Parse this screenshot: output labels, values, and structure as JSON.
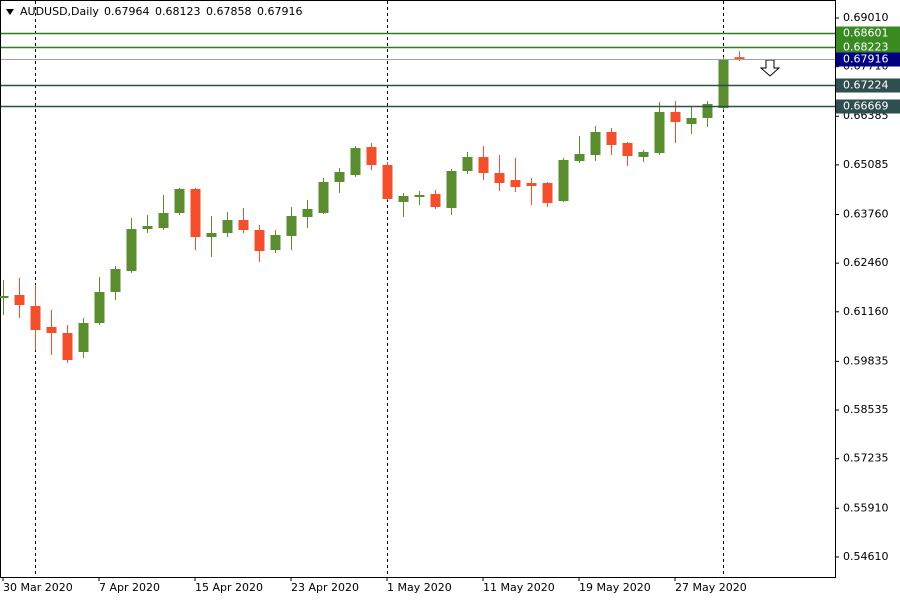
{
  "chart_data": {
    "type": "candlestick",
    "symbol": "AUDUSD,Daily",
    "up_color": "#5b8c30",
    "down_color": "#f2502c",
    "categories": [
      "30 Mar 2020",
      null,
      null,
      null,
      null,
      null,
      "7 Apr 2020",
      null,
      null,
      null,
      null,
      null,
      "15 Apr 2020",
      null,
      null,
      null,
      null,
      null,
      "23 Apr 2020",
      null,
      null,
      null,
      null,
      null,
      "1 May 2020",
      null,
      null,
      null,
      null,
      null,
      "11 May 2020",
      null,
      null,
      null,
      null,
      null,
      "19 May 2020",
      null,
      null,
      null,
      null,
      null,
      "27 May 2020",
      null,
      null,
      null,
      null
    ],
    "open": [
      0.61528,
      0.61609,
      0.61315,
      0.60754,
      0.60593,
      0.60086,
      0.6086,
      0.61689,
      0.6225,
      0.63372,
      0.63399,
      0.638,
      0.64441,
      0.63158,
      0.63265,
      0.63613,
      0.63345,
      0.62811,
      0.63185,
      0.63693,
      0.638,
      0.64628,
      0.64815,
      0.65563,
      0.65082,
      0.64094,
      0.64227,
      0.64307,
      0.63933,
      0.64922,
      0.65296,
      0.64868,
      0.64681,
      0.64601,
      0.64601,
      0.6412,
      0.65189,
      0.65349,
      0.65964,
      0.6567,
      0.65296,
      0.65403,
      0.66498,
      0.66178,
      0.66338,
      0.66605,
      0.67964
    ],
    "high": [
      0.62009,
      0.62063,
      0.61876,
      0.61208,
      0.60807,
      0.60994,
      0.6209,
      0.62383,
      0.63666,
      0.63746,
      0.64281,
      0.64468,
      0.64468,
      0.63719,
      0.63826,
      0.63933,
      0.63479,
      0.63345,
      0.6396,
      0.64147,
      0.64735,
      0.65002,
      0.6559,
      0.6567,
      0.65162,
      0.64334,
      0.64387,
      0.64414,
      0.64975,
      0.6543,
      0.6559,
      0.65349,
      0.65269,
      0.64735,
      0.64628,
      0.65269,
      0.65857,
      0.66124,
      0.66071,
      0.65697,
      0.65483,
      0.66766,
      0.66792,
      0.66632,
      0.66792,
      0.67968,
      0.68123
    ],
    "low": [
      0.61074,
      0.60994,
      0.60139,
      0.60005,
      0.59792,
      0.59925,
      0.60807,
      0.61475,
      0.62196,
      0.63265,
      0.63345,
      0.63746,
      0.62811,
      0.62624,
      0.63158,
      0.63265,
      0.6249,
      0.62731,
      0.62811,
      0.63399,
      0.63773,
      0.64334,
      0.64762,
      0.64949,
      0.64147,
      0.63693,
      0.64013,
      0.63907,
      0.63746,
      0.64842,
      0.64681,
      0.64387,
      0.64361,
      0.64013,
      0.6396,
      0.64094,
      0.65136,
      0.65189,
      0.65349,
      0.65055,
      0.65162,
      0.65349,
      0.6567,
      0.65911,
      0.66098,
      0.66552,
      0.67858
    ],
    "close": [
      0.61582,
      0.61341,
      0.60673,
      0.60593,
      0.59872,
      0.6086,
      0.61689,
      0.62303,
      0.63372,
      0.63452,
      0.638,
      0.64441,
      0.63158,
      0.63265,
      0.63613,
      0.63345,
      0.62784,
      0.63212,
      0.63719,
      0.63907,
      0.64628,
      0.64895,
      0.65536,
      0.65082,
      0.64174,
      0.64254,
      0.64281,
      0.6396,
      0.64922,
      0.65296,
      0.64868,
      0.64601,
      0.64494,
      0.64521,
      0.64067,
      0.65216,
      0.65376,
      0.65964,
      0.65617,
      0.65323,
      0.6543,
      0.66498,
      0.66231,
      0.66338,
      0.66712,
      0.67915,
      0.67916
    ],
    "ylim": [
      0.54074,
      0.69491
    ],
    "yticks": [
      {
        "value": 0.6901,
        "label": "0.69010"
      },
      {
        "value": 0.6771,
        "label": "0.67710"
      },
      0.66385,
      0.65085,
      {
        "value": 0.6376,
        "label": "0.63760"
      },
      {
        "value": 0.6246,
        "label": "0.62460"
      },
      {
        "value": 0.6116,
        "label": "0.61160"
      },
      0.59835,
      0.58535,
      0.57235,
      {
        "value": 0.5591,
        "label": "0.55910"
      },
      {
        "value": 0.5461,
        "label": "0.54610"
      }
    ],
    "levels": [
      {
        "value": 0.68601,
        "color": "#2e7d1e",
        "label_color": "#3a8a22"
      },
      {
        "value": 0.68223,
        "color": "#2e7d1e",
        "label_color": "#3a8a22"
      },
      {
        "value": 0.67224,
        "color": "#2f4f4f",
        "label_color": "#2f4f4f"
      },
      {
        "value": 0.66669,
        "color": "#2f4f4f",
        "label_color": "#2f4f4f"
      }
    ],
    "price_line_color": "#a0a0a0",
    "price_label_color": "#000080"
  }
}
